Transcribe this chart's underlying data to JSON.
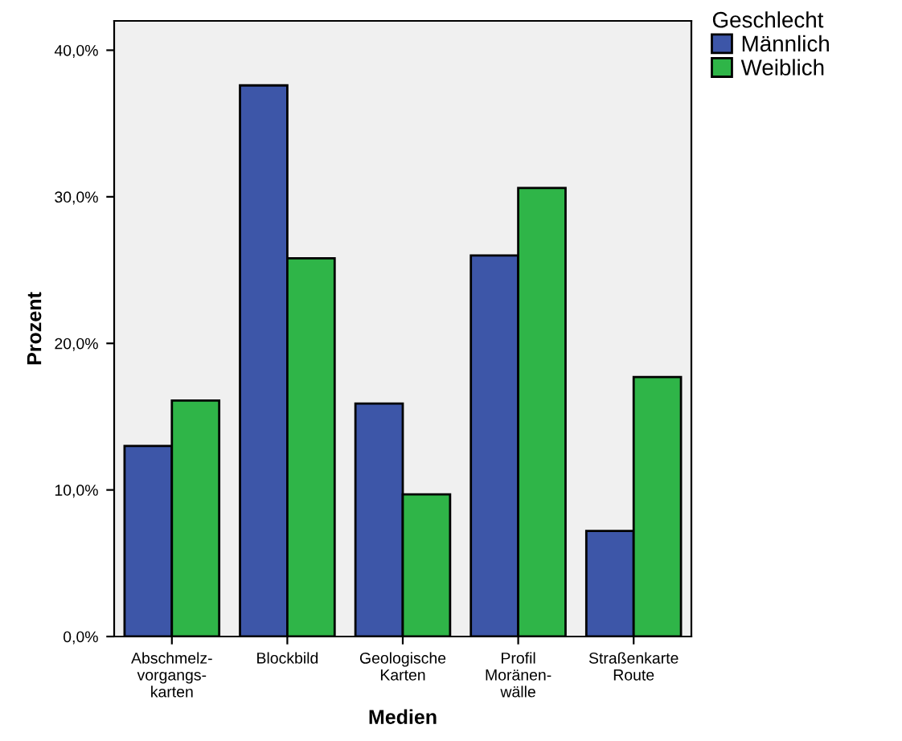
{
  "chart_data": {
    "type": "bar",
    "xlabel": "Medien",
    "ylabel": "Prozent",
    "legend_title": "Geschlecht",
    "categories": [
      "Abschmelz-\nvorgangs-\nkarten",
      "Blockbild",
      "Geologische\nKarten",
      "Profil\nMoränen-\nwälle",
      "Straßenkarte\nRoute"
    ],
    "series": [
      {
        "name": "Männlich",
        "color": "#3d56a8",
        "values": [
          13.0,
          37.6,
          15.9,
          26.0,
          7.2
        ]
      },
      {
        "name": "Weiblich",
        "color": "#2fb548",
        "values": [
          16.1,
          25.8,
          9.7,
          30.6,
          17.7
        ]
      }
    ],
    "ylim": [
      0,
      42
    ],
    "yticks": [
      {
        "value": 0,
        "label": "0,0%"
      },
      {
        "value": 10,
        "label": "10,0%"
      },
      {
        "value": 20,
        "label": "20,0%"
      },
      {
        "value": 30,
        "label": "30,0%"
      },
      {
        "value": 40,
        "label": "40,0%"
      }
    ],
    "grid": false,
    "legend": "top right"
  }
}
